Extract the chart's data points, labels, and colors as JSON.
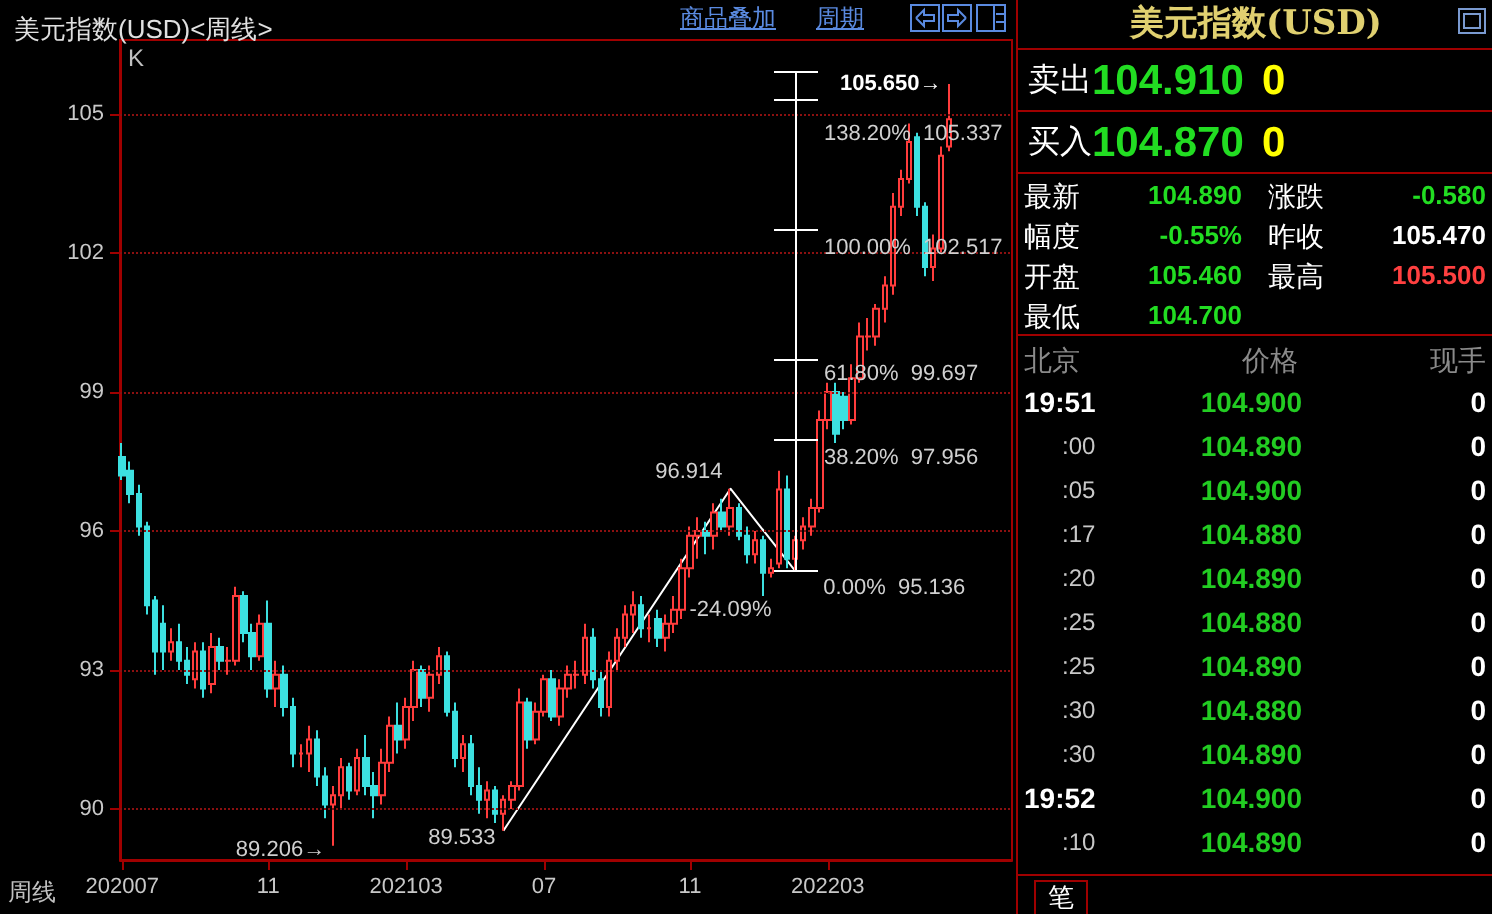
{
  "chart_data": [
    {
      "type": "candlestick",
      "title": "美元指数(USD)<周线>",
      "x": [
        "2020-07-03",
        "2020-07-10",
        "2020-07-17",
        "2020-07-24",
        "2020-07-31",
        "2020-08-07",
        "2020-08-14",
        "2020-08-21",
        "2020-08-28",
        "2020-09-04",
        "2020-09-11",
        "2020-09-18",
        "2020-09-25",
        "2020-10-02",
        "2020-10-09",
        "2020-10-16",
        "2020-10-23",
        "2020-10-30",
        "2020-11-06",
        "2020-11-13",
        "2020-11-20",
        "2020-11-27",
        "2020-12-04",
        "2020-12-11",
        "2020-12-18",
        "2020-12-25",
        "2021-01-01",
        "2021-01-08",
        "2021-01-15",
        "2021-01-22",
        "2021-01-29",
        "2021-02-05",
        "2021-02-12",
        "2021-02-19",
        "2021-02-26",
        "2021-03-05",
        "2021-03-12",
        "2021-03-19",
        "2021-03-26",
        "2021-04-02",
        "2021-04-09",
        "2021-04-16",
        "2021-04-23",
        "2021-04-30",
        "2021-05-07",
        "2021-05-14",
        "2021-05-21",
        "2021-05-28",
        "2021-06-04",
        "2021-06-11",
        "2021-06-18",
        "2021-06-25",
        "2021-07-02",
        "2021-07-09",
        "2021-07-16",
        "2021-07-23",
        "2021-07-30",
        "2021-08-06",
        "2021-08-13",
        "2021-08-20",
        "2021-08-27",
        "2021-09-03",
        "2021-09-10",
        "2021-09-17",
        "2021-09-24",
        "2021-10-01",
        "2021-10-08",
        "2021-10-15",
        "2021-10-22",
        "2021-10-29",
        "2021-11-05",
        "2021-11-12",
        "2021-11-19",
        "2021-11-26",
        "2021-12-03",
        "2021-12-10",
        "2021-12-17",
        "2021-12-24",
        "2021-12-31",
        "2022-01-07",
        "2022-01-14",
        "2022-01-21",
        "2022-01-28",
        "2022-02-04",
        "2022-02-11",
        "2022-02-18",
        "2022-02-25",
        "2022-03-04",
        "2022-03-11",
        "2022-03-18",
        "2022-03-25",
        "2022-04-01",
        "2022-04-08",
        "2022-04-15",
        "2022-04-22",
        "2022-04-29",
        "2022-05-06",
        "2022-05-13",
        "2022-05-20",
        "2022-05-27",
        "2022-06-03",
        "2022-06-10",
        "2022-06-17"
      ],
      "ohlc": [
        [
          97.6,
          97.9,
          97.1,
          97.2
        ],
        [
          97.3,
          97.5,
          96.6,
          96.8
        ],
        [
          96.8,
          97.0,
          95.9,
          96.1
        ],
        [
          96.1,
          96.2,
          94.2,
          94.4
        ],
        [
          94.5,
          94.6,
          92.9,
          93.4
        ],
        [
          94.0,
          94.4,
          93.0,
          93.4
        ],
        [
          93.4,
          93.9,
          93.2,
          93.6
        ],
        [
          93.6,
          94.0,
          93.0,
          93.2
        ],
        [
          93.2,
          93.5,
          92.7,
          92.9
        ],
        [
          92.8,
          93.6,
          92.6,
          93.4
        ],
        [
          93.4,
          93.6,
          92.4,
          92.6
        ],
        [
          92.7,
          93.8,
          92.5,
          93.5
        ],
        [
          93.5,
          93.7,
          93.0,
          93.2
        ],
        [
          93.2,
          93.5,
          92.9,
          93.2
        ],
        [
          93.2,
          94.8,
          93.1,
          94.6
        ],
        [
          94.6,
          94.7,
          93.6,
          93.8
        ],
        [
          93.8,
          94.0,
          93.0,
          93.3
        ],
        [
          93.3,
          94.2,
          93.2,
          94.0
        ],
        [
          94.0,
          94.5,
          92.4,
          92.6
        ],
        [
          92.6,
          93.2,
          92.2,
          92.9
        ],
        [
          92.9,
          93.1,
          92.0,
          92.2
        ],
        [
          92.2,
          92.4,
          90.9,
          91.2
        ],
        [
          91.2,
          91.4,
          90.9,
          91.2
        ],
        [
          91.2,
          91.8,
          90.8,
          91.5
        ],
        [
          91.5,
          91.7,
          90.5,
          90.7
        ],
        [
          90.7,
          90.9,
          89.8,
          90.1
        ],
        [
          90.1,
          90.5,
          89.206,
          90.3
        ],
        [
          90.3,
          91.1,
          90.0,
          90.9
        ],
        [
          90.9,
          91.0,
          90.2,
          90.4
        ],
        [
          90.4,
          91.3,
          90.3,
          91.1
        ],
        [
          91.1,
          91.6,
          90.3,
          90.5
        ],
        [
          90.5,
          90.8,
          89.8,
          90.3
        ],
        [
          90.3,
          91.3,
          90.1,
          91.0
        ],
        [
          91.0,
          92.0,
          90.8,
          91.8
        ],
        [
          91.8,
          92.3,
          91.2,
          91.5
        ],
        [
          91.5,
          92.4,
          91.3,
          92.2
        ],
        [
          92.2,
          93.2,
          91.9,
          93.0
        ],
        [
          93.0,
          93.1,
          92.2,
          92.4
        ],
        [
          92.4,
          93.1,
          92.1,
          92.9
        ],
        [
          92.9,
          93.5,
          92.7,
          93.3
        ],
        [
          93.3,
          93.4,
          92.0,
          92.1
        ],
        [
          92.1,
          92.3,
          90.9,
          91.1
        ],
        [
          91.1,
          91.6,
          90.8,
          91.4
        ],
        [
          91.4,
          91.6,
          90.3,
          90.5
        ],
        [
          90.5,
          90.9,
          89.9,
          90.2
        ],
        [
          90.2,
          90.6,
          89.8,
          90.4
        ],
        [
          90.4,
          90.5,
          89.7,
          89.9
        ],
        [
          89.9,
          90.3,
          89.533,
          90.2
        ],
        [
          90.2,
          90.6,
          90.0,
          90.5
        ],
        [
          90.5,
          92.6,
          90.4,
          92.3
        ],
        [
          92.3,
          92.4,
          91.3,
          91.5
        ],
        [
          91.5,
          92.3,
          91.4,
          92.1
        ],
        [
          92.1,
          92.9,
          92.0,
          92.8
        ],
        [
          92.8,
          93.0,
          91.9,
          92.0
        ],
        [
          92.0,
          92.8,
          91.8,
          92.6
        ],
        [
          92.6,
          93.1,
          92.4,
          92.9
        ],
        [
          92.9,
          93.2,
          92.6,
          92.9
        ],
        [
          92.9,
          94.0,
          92.7,
          93.7
        ],
        [
          93.7,
          93.9,
          92.6,
          92.8
        ],
        [
          92.8,
          93.0,
          92.0,
          92.2
        ],
        [
          92.2,
          93.4,
          92.0,
          93.2
        ],
        [
          93.2,
          93.9,
          93.0,
          93.7
        ],
        [
          93.7,
          94.4,
          93.5,
          94.2
        ],
        [
          94.2,
          94.7,
          93.8,
          94.4
        ],
        [
          94.4,
          94.6,
          93.7,
          93.9
        ],
        [
          93.9,
          94.2,
          93.6,
          93.9
        ],
        [
          94.1,
          94.3,
          93.5,
          93.7
        ],
        [
          93.7,
          94.2,
          93.4,
          94.0
        ],
        [
          94.0,
          94.6,
          93.8,
          94.3
        ],
        [
          94.3,
          95.4,
          94.1,
          95.2
        ],
        [
          95.2,
          96.1,
          95.0,
          95.9
        ],
        [
          95.9,
          96.3,
          95.4,
          96.0
        ],
        [
          96.0,
          96.2,
          95.5,
          95.9
        ],
        [
          95.9,
          96.6,
          95.6,
          96.4
        ],
        [
          96.4,
          96.7,
          96.0,
          96.1
        ],
        [
          96.1,
          96.914,
          95.9,
          96.5
        ],
        [
          96.5,
          96.6,
          95.8,
          95.9
        ],
        [
          95.9,
          96.1,
          95.3,
          95.5
        ],
        [
          95.5,
          96.0,
          95.3,
          95.8
        ],
        [
          95.8,
          95.9,
          94.6,
          95.1
        ],
        [
          95.1,
          95.4,
          95.0,
          95.2
        ],
        [
          95.3,
          97.3,
          95.2,
          96.9
        ],
        [
          96.9,
          97.2,
          95.2,
          95.4
        ],
        [
          95.4,
          95.9,
          95.136,
          95.8
        ],
        [
          95.8,
          96.3,
          95.6,
          96.1
        ],
        [
          96.1,
          96.7,
          95.9,
          96.5
        ],
        [
          96.5,
          98.6,
          96.4,
          98.4
        ],
        [
          98.4,
          99.2,
          98.2,
          99.0
        ],
        [
          99.0,
          99.2,
          97.9,
          98.1
        ],
        [
          98.9,
          99.0,
          98.2,
          98.4
        ],
        [
          98.4,
          99.6,
          98.3,
          99.3
        ],
        [
          99.3,
          100.5,
          99.2,
          100.2
        ],
        [
          100.2,
          100.6,
          99.9,
          100.2
        ],
        [
          100.2,
          100.9,
          100.0,
          100.8
        ],
        [
          100.8,
          101.5,
          100.5,
          101.3
        ],
        [
          101.3,
          103.3,
          101.1,
          103.0
        ],
        [
          103.0,
          103.8,
          102.8,
          103.6
        ],
        [
          103.6,
          104.8,
          103.5,
          104.4
        ],
        [
          104.5,
          104.6,
          102.8,
          103.0
        ],
        [
          103.0,
          103.1,
          101.5,
          101.7
        ],
        [
          101.7,
          102.4,
          101.4,
          102.1
        ],
        [
          102.1,
          104.3,
          102.0,
          104.1
        ],
        [
          104.3,
          105.65,
          104.2,
          104.89
        ]
      ],
      "colors": [
        "#3ce0e0",
        "#3ce0e0",
        "#3ce0e0",
        "#3ce0e0",
        "#3ce0e0",
        "#3ce0e0",
        "#ff3c3c",
        "#3ce0e0",
        "#3ce0e0",
        "#ff3c3c",
        "#3ce0e0",
        "#ff3c3c",
        "#3ce0e0",
        "#ff3c3c",
        "#ff3c3c",
        "#3ce0e0",
        "#3ce0e0",
        "#ff3c3c",
        "#3ce0e0",
        "#ff3c3c",
        "#3ce0e0",
        "#3ce0e0",
        "#ff3c3c",
        "#ff3c3c",
        "#3ce0e0",
        "#3ce0e0",
        "#ff3c3c",
        "#ff3c3c",
        "#3ce0e0",
        "#ff3c3c",
        "#3ce0e0",
        "#3ce0e0",
        "#ff3c3c",
        "#ff3c3c",
        "#3ce0e0",
        "#ff3c3c",
        "#ff3c3c",
        "#3ce0e0",
        "#ff3c3c",
        "#ff3c3c",
        "#3ce0e0",
        "#3ce0e0",
        "#ff3c3c",
        "#3ce0e0",
        "#3ce0e0",
        "#ff3c3c",
        "#3ce0e0",
        "#ff3c3c",
        "#ff3c3c",
        "#ff3c3c",
        "#3ce0e0",
        "#ff3c3c",
        "#ff3c3c",
        "#3ce0e0",
        "#ff3c3c",
        "#ff3c3c",
        "#ff3c3c",
        "#ff3c3c",
        "#3ce0e0",
        "#3ce0e0",
        "#ff3c3c",
        "#ff3c3c",
        "#ff3c3c",
        "#ff3c3c",
        "#3ce0e0",
        "#ff3c3c",
        "#3ce0e0",
        "#ff3c3c",
        "#ff3c3c",
        "#ff3c3c",
        "#ff3c3c",
        "#ff3c3c",
        "#3ce0e0",
        "#ff3c3c",
        "#3ce0e0",
        "#ff3c3c",
        "#3ce0e0",
        "#3ce0e0",
        "#ff3c3c",
        "#3ce0e0",
        "#ff3c3c",
        "#ff3c3c",
        "#3ce0e0",
        "#ff3c3c",
        "#ff3c3c",
        "#ff3c3c",
        "#ff3c3c",
        "#ff3c3c",
        "#3ce0e0",
        "#3ce0e0",
        "#ff3c3c",
        "#ff3c3c",
        "#ff3c3c",
        "#ff3c3c",
        "#ff3c3c",
        "#ff3c3c",
        "#ff3c3c",
        "#ff3c3c",
        "#3ce0e0",
        "#3ce0e0",
        "#ff3c3c",
        "#ff3c3c",
        "#ff3c3c"
      ],
      "series": [
        {
          "type": "line",
          "x": [
            "2021-05-28",
            "2021-12-10",
            "2022-02-04"
          ],
          "values": [
            89.533,
            96.914,
            95.136
          ],
          "color": "#ffffff"
        }
      ],
      "marker": "none",
      "xlim": [
        "2020-07-01",
        "2022-08-10"
      ],
      "xticks": [
        {
          "value": "2020-07-03",
          "label": "202007"
        },
        {
          "value": "2020-11-06",
          "label": "11"
        },
        {
          "value": "2021-03-05",
          "label": "202103"
        },
        {
          "value": "2021-07-02",
          "label": "07"
        },
        {
          "value": "2021-11-05",
          "label": "11"
        },
        {
          "value": "2022-03-04",
          "label": "202203"
        }
      ],
      "ylim": [
        88.9,
        106.6
      ],
      "yticks": [
        90,
        93,
        96,
        99,
        102,
        105
      ],
      "grid": "y",
      "annotations": [
        "K",
        "周线",
        "商品叠加",
        "周期",
        {
          "text": "105.650→",
          "x": "2022-06-17",
          "y": 105.65
        },
        "138.20%  105.337",
        "100.00%  102.517",
        "61.80%  99.697",
        "38.20%  97.956",
        {
          "text": "0.00%  95.136",
          "x": "2022-02-04",
          "y": 95.136
        },
        {
          "text": "96.914",
          "x": "2021-12-10",
          "y": 96.914
        },
        {
          "text": "-24.09%",
          "x": "2021-10-08",
          "y": 94.8
        },
        {
          "text": "89.206→",
          "x": "2021-01-01",
          "y": 89.206
        },
        {
          "text": "89.533",
          "x": "2021-05-28",
          "y": 89.533
        }
      ]
    },
    {
      "type": "other",
      "title": "美元指数(USD)",
      "annotations": [
        "卖出",
        "104.910",
        "0",
        "买入",
        "104.870",
        "0",
        "最新",
        "104.890",
        "涨跌",
        "-0.580",
        "幅度",
        "-0.55%",
        "昨收",
        "105.470",
        "开盘",
        "105.460",
        "最高",
        "105.500",
        "最低",
        "104.700",
        "北京",
        "价格",
        "现手",
        "19:51",
        "104.900",
        "0",
        ":00",
        "104.890",
        "0",
        ":05",
        "104.900",
        "0",
        ":17",
        "104.880",
        "0",
        ":20",
        "104.890",
        "0",
        ":25",
        "104.880",
        "0",
        ":25",
        "104.890",
        "0",
        ":30",
        "104.880",
        "0",
        ":30",
        "104.890",
        "0",
        "19:52",
        "104.900",
        "0",
        ":10",
        "104.890",
        "0",
        "笔"
      ]
    }
  ]
}
